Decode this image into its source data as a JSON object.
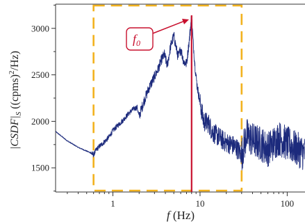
{
  "chart_data": {
    "type": "line",
    "x_scale": "log",
    "xlim": [
      0.22,
      160
    ],
    "ylim": [
      1240,
      3260
    ],
    "x_ticks": [
      1,
      10,
      100
    ],
    "x_tick_labels": [
      "1",
      "10",
      "100"
    ],
    "y_ticks": [
      1500,
      2000,
      2500,
      3000
    ],
    "y_tick_labels": [
      "1500",
      "2000",
      "2500",
      "3000"
    ],
    "xlabel_italic": "f",
    "xlabel_rest": " (Hz)",
    "ylabel_main": "|CSDF|",
    "ylabel_sub": "S",
    "ylabel_rest": " ((cpms)",
    "ylabel_sup": "2",
    "ylabel_end": "/Hz)",
    "grid": false,
    "series": [
      {
        "color": "#1c2a7c",
        "x": [
          0.22,
          0.3,
          0.4,
          0.5,
          0.56,
          0.6,
          0.65,
          0.7,
          0.8,
          0.9,
          1.0,
          1.15,
          1.3,
          1.5,
          1.7,
          1.9,
          2.0,
          2.1,
          2.3,
          2.6,
          3.0,
          3.3,
          3.6,
          3.9,
          4.2,
          4.6,
          5.0,
          5.3,
          5.6,
          6.0,
          6.5,
          7.0,
          7.5,
          8.0,
          8.3,
          8.7,
          9.2,
          10.0,
          11.0,
          12.5,
          14.0,
          16.0,
          18.0,
          20.0,
          23.0,
          26.0,
          30.0,
          34.0,
          40.0,
          50.0,
          60.0,
          80.0,
          100.0,
          130.0,
          160.0
        ],
        "y": [
          1890,
          1790,
          1720,
          1680,
          1660,
          1640,
          1700,
          1730,
          1780,
          1830,
          1900,
          1960,
          2010,
          2080,
          2130,
          2150,
          2050,
          2120,
          2230,
          2360,
          2480,
          2560,
          2660,
          2720,
          2600,
          2810,
          2920,
          2800,
          2690,
          2780,
          2640,
          2620,
          2860,
          3140,
          2880,
          2620,
          2400,
          2200,
          2000,
          1980,
          1880,
          1840,
          1800,
          1770,
          1750,
          1720,
          1640,
          1850,
          1800,
          1760,
          1700,
          1820,
          1760,
          1700,
          1650
        ]
      }
    ],
    "annotations": {
      "marker_label": "f0",
      "marker_label_italic": "f",
      "marker_label_sub": "0",
      "marker_x": 8.0,
      "marker_color": "#c8102e",
      "highlight_x_range": [
        0.6,
        30
      ],
      "highlight_y_range": [
        1240,
        3260
      ],
      "highlight_color": "#f2b21e"
    }
  }
}
